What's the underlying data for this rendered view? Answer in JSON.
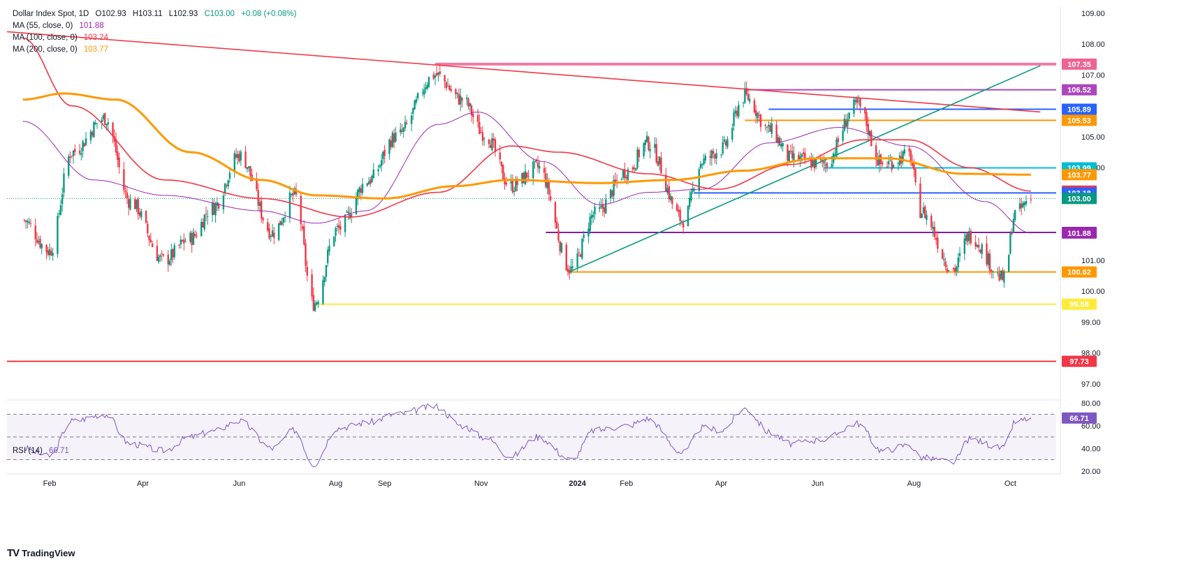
{
  "header": {
    "symbol": "Dollar Index Spot, 1D",
    "open": "O102.93",
    "high": "H103.11",
    "low": "L102.93",
    "close": "C103.00",
    "change": "+0.08 (+0.08%)"
  },
  "moving_averages": [
    {
      "label": "MA (55, close, 0)",
      "value": "101.88",
      "color": "#9c27b0"
    },
    {
      "label": "MA (100, close, 0)",
      "value": "103.24",
      "color": "#f23645"
    },
    {
      "label": "MA (200, close, 0)",
      "value": "103.77",
      "color": "#ff9800"
    }
  ],
  "rsi_legend": {
    "label": "RSI (14)",
    "value": "66.71"
  },
  "footer": {
    "brand": "TradingView"
  },
  "colors": {
    "bull": "#089981",
    "bear": "#f23645",
    "ma55": "#9c27b0",
    "ma100": "#f23645",
    "ma200": "#ff9800",
    "rsi": "#7e57c2",
    "trend_up": "#089981",
    "trend_down": "#f23645"
  },
  "chart_data": [
    {
      "type": "candlestick",
      "title": "Dollar Index Spot, 1D",
      "x_tick_labels": [
        "Feb",
        "Apr",
        "Jun",
        "Aug",
        "Sep",
        "Nov",
        "2024",
        "Feb",
        "Apr",
        "Jun",
        "Aug",
        "Oct"
      ],
      "ylim": [
        96.5,
        109.2
      ],
      "y_ticks": [
        "109.00",
        "108.00",
        "107.00",
        "105.00",
        "104.00",
        "101.00",
        "100.00",
        "99.00",
        "98.00",
        "97.00"
      ],
      "price_keypoints": [
        {
          "date": "2023-01-15",
          "price": 102.3
        },
        {
          "date": "2023-02-01",
          "price": 101.3
        },
        {
          "date": "2023-02-15",
          "price": 104.5
        },
        {
          "date": "2023-03-08",
          "price": 105.6
        },
        {
          "date": "2023-03-24",
          "price": 102.9
        },
        {
          "date": "2023-04-14",
          "price": 101.0
        },
        {
          "date": "2023-05-01",
          "price": 101.7
        },
        {
          "date": "2023-05-15",
          "price": 102.7
        },
        {
          "date": "2023-06-01",
          "price": 104.4
        },
        {
          "date": "2023-06-22",
          "price": 101.9
        },
        {
          "date": "2023-07-06",
          "price": 103.1
        },
        {
          "date": "2023-07-18",
          "price": 99.6
        },
        {
          "date": "2023-08-02",
          "price": 102.0
        },
        {
          "date": "2023-08-22",
          "price": 103.6
        },
        {
          "date": "2023-09-08",
          "price": 105.0
        },
        {
          "date": "2023-10-03",
          "price": 107.0
        },
        {
          "date": "2023-10-20",
          "price": 106.2
        },
        {
          "date": "2023-11-03",
          "price": 105.1
        },
        {
          "date": "2023-11-20",
          "price": 103.4
        },
        {
          "date": "2023-12-07",
          "price": 104.0
        },
        {
          "date": "2023-12-28",
          "price": 100.7
        },
        {
          "date": "2024-01-12",
          "price": 102.5
        },
        {
          "date": "2024-02-02",
          "price": 103.9
        },
        {
          "date": "2024-02-14",
          "price": 104.8
        },
        {
          "date": "2024-03-08",
          "price": 102.3
        },
        {
          "date": "2024-03-20",
          "price": 104.2
        },
        {
          "date": "2024-04-01",
          "price": 104.6
        },
        {
          "date": "2024-04-16",
          "price": 106.3
        },
        {
          "date": "2024-05-02",
          "price": 105.2
        },
        {
          "date": "2024-05-15",
          "price": 104.3
        },
        {
          "date": "2024-06-05",
          "price": 104.1
        },
        {
          "date": "2024-06-26",
          "price": 106.0
        },
        {
          "date": "2024-07-12",
          "price": 104.1
        },
        {
          "date": "2024-07-29",
          "price": 104.4
        },
        {
          "date": "2024-08-05",
          "price": 102.6
        },
        {
          "date": "2024-08-26",
          "price": 100.7
        },
        {
          "date": "2024-09-05",
          "price": 101.8
        },
        {
          "date": "2024-09-27",
          "price": 100.4
        },
        {
          "date": "2024-10-04",
          "price": 102.5
        },
        {
          "date": "2024-10-14",
          "price": 103.0
        }
      ],
      "moving_averages": [
        {
          "name": "MA (55, close, 0)",
          "points": [
            {
              "date": "2023-01-15",
              "v": 105.5
            },
            {
              "date": "2023-03-01",
              "v": 103.6
            },
            {
              "date": "2023-04-15",
              "v": 103.1
            },
            {
              "date": "2023-06-15",
              "v": 102.6
            },
            {
              "date": "2023-07-20",
              "v": 102.2
            },
            {
              "date": "2023-08-20",
              "v": 102.6
            },
            {
              "date": "2023-10-05",
              "v": 105.4
            },
            {
              "date": "2023-10-30",
              "v": 105.8
            },
            {
              "date": "2023-12-10",
              "v": 104.2
            },
            {
              "date": "2024-01-15",
              "v": 102.8
            },
            {
              "date": "2024-02-15",
              "v": 103.2
            },
            {
              "date": "2024-03-20",
              "v": 103.3
            },
            {
              "date": "2024-05-01",
              "v": 104.8
            },
            {
              "date": "2024-06-15",
              "v": 105.3
            },
            {
              "date": "2024-07-29",
              "v": 104.7
            },
            {
              "date": "2024-09-15",
              "v": 102.9
            },
            {
              "date": "2024-10-14",
              "v": 101.88
            }
          ]
        },
        {
          "name": "MA (100, close, 0)",
          "points": [
            {
              "date": "2023-01-15",
              "v": 108.2
            },
            {
              "date": "2023-02-15",
              "v": 106.0
            },
            {
              "date": "2023-04-15",
              "v": 103.6
            },
            {
              "date": "2023-06-15",
              "v": 103.0
            },
            {
              "date": "2023-08-10",
              "v": 102.4
            },
            {
              "date": "2023-10-05",
              "v": 103.2
            },
            {
              "date": "2023-11-20",
              "v": 104.7
            },
            {
              "date": "2023-12-20",
              "v": 104.5
            },
            {
              "date": "2024-02-15",
              "v": 103.8
            },
            {
              "date": "2024-03-30",
              "v": 103.3
            },
            {
              "date": "2024-05-15",
              "v": 104.1
            },
            {
              "date": "2024-06-30",
              "v": 104.9
            },
            {
              "date": "2024-07-29",
              "v": 104.9
            },
            {
              "date": "2024-09-05",
              "v": 104.0
            },
            {
              "date": "2024-10-14",
              "v": 103.24
            }
          ]
        },
        {
          "name": "MA (200, close, 0)",
          "points": [
            {
              "date": "2023-01-15",
              "v": 106.2
            },
            {
              "date": "2023-02-10",
              "v": 106.4
            },
            {
              "date": "2023-03-15",
              "v": 106.2
            },
            {
              "date": "2023-05-01",
              "v": 104.5
            },
            {
              "date": "2023-06-15",
              "v": 103.6
            },
            {
              "date": "2023-07-20",
              "v": 103.1
            },
            {
              "date": "2023-09-01",
              "v": 103.0
            },
            {
              "date": "2023-10-15",
              "v": 103.4
            },
            {
              "date": "2023-11-20",
              "v": 103.6
            },
            {
              "date": "2024-01-15",
              "v": 103.5
            },
            {
              "date": "2024-03-01",
              "v": 103.6
            },
            {
              "date": "2024-04-15",
              "v": 103.9
            },
            {
              "date": "2024-06-01",
              "v": 104.3
            },
            {
              "date": "2024-07-15",
              "v": 104.3
            },
            {
              "date": "2024-09-01",
              "v": 103.8
            },
            {
              "date": "2024-10-14",
              "v": 103.77
            }
          ]
        }
      ],
      "trendlines": [
        {
          "from": {
            "date": "2023-01-05",
            "price": 108.4
          },
          "to": {
            "date": "2024-10-20",
            "price": 105.8
          }
        },
        {
          "from": {
            "date": "2023-12-28",
            "price": 100.65
          },
          "to": {
            "date": "2024-10-20",
            "price": 107.3
          }
        }
      ],
      "horizontal_levels": [
        {
          "price": 107.35,
          "label": "107.35",
          "color": "#f06292",
          "from_date": "2023-10-03"
        },
        {
          "price": 106.52,
          "label": "106.52",
          "color": "#ab47bc",
          "from_date": "2024-04-16"
        },
        {
          "price": 105.89,
          "label": "105.89",
          "color": "#2962ff",
          "from_date": "2024-05-01"
        },
        {
          "price": 105.53,
          "label": "105.53",
          "color": "#ff9800",
          "from_date": "2024-04-16"
        },
        {
          "price": 103.99,
          "label": "103.99",
          "color": "#00bcd4",
          "from_date": "2024-06-05"
        },
        {
          "price": 103.77,
          "label": "103.77",
          "color": "#ff9800",
          "from_date": null
        },
        {
          "price": 103.24,
          "label": "103.24",
          "color": "#f23645",
          "from_date": null
        },
        {
          "price": 103.18,
          "label": "103.18",
          "color": "#2962ff",
          "from_date": "2024-03-15"
        },
        {
          "price": 103.0,
          "label": "103.00",
          "color": "#089981",
          "from_date": null
        },
        {
          "price": 101.9,
          "label": "101.90",
          "color": "#7b1fa2",
          "from_date": "2023-12-12"
        },
        {
          "price": 101.88,
          "label": "101.88",
          "color": "#9c27b0",
          "from_date": null
        },
        {
          "price": 100.62,
          "label": "100.62",
          "color": "#ff9800",
          "from_date": "2023-12-28"
        },
        {
          "price": 99.58,
          "label": "99.58",
          "color": "#ffeb3b",
          "from_date": "2023-07-18"
        },
        {
          "price": 97.73,
          "label": "97.73",
          "color": "#f23645",
          "from_date": "2023-01-05"
        }
      ]
    },
    {
      "type": "line",
      "title": "RSI (14)",
      "ylim": [
        18,
        82
      ],
      "y_ticks": [
        "80.00",
        "60.00",
        "40.00",
        "20.00"
      ],
      "bands": [
        70,
        50,
        30
      ],
      "last_value": "66.71",
      "points": [
        {
          "date": "2023-01-15",
          "v": 40
        },
        {
          "date": "2023-02-01",
          "v": 33
        },
        {
          "date": "2023-02-15",
          "v": 64
        },
        {
          "date": "2023-03-08",
          "v": 70
        },
        {
          "date": "2023-03-24",
          "v": 44
        },
        {
          "date": "2023-04-14",
          "v": 38
        },
        {
          "date": "2023-05-01",
          "v": 50
        },
        {
          "date": "2023-05-15",
          "v": 55
        },
        {
          "date": "2023-06-01",
          "v": 64
        },
        {
          "date": "2023-06-22",
          "v": 40
        },
        {
          "date": "2023-07-06",
          "v": 56
        },
        {
          "date": "2023-07-18",
          "v": 26
        },
        {
          "date": "2023-08-02",
          "v": 58
        },
        {
          "date": "2023-08-22",
          "v": 63
        },
        {
          "date": "2023-09-08",
          "v": 70
        },
        {
          "date": "2023-10-03",
          "v": 77
        },
        {
          "date": "2023-10-20",
          "v": 60
        },
        {
          "date": "2023-11-03",
          "v": 50
        },
        {
          "date": "2023-11-20",
          "v": 33
        },
        {
          "date": "2023-12-07",
          "v": 50
        },
        {
          "date": "2023-12-28",
          "v": 30
        },
        {
          "date": "2024-01-12",
          "v": 56
        },
        {
          "date": "2024-02-02",
          "v": 60
        },
        {
          "date": "2024-02-14",
          "v": 66
        },
        {
          "date": "2024-03-08",
          "v": 36
        },
        {
          "date": "2024-03-20",
          "v": 58
        },
        {
          "date": "2024-04-01",
          "v": 56
        },
        {
          "date": "2024-04-16",
          "v": 75
        },
        {
          "date": "2024-05-02",
          "v": 54
        },
        {
          "date": "2024-05-15",
          "v": 44
        },
        {
          "date": "2024-06-05",
          "v": 48
        },
        {
          "date": "2024-06-26",
          "v": 62
        },
        {
          "date": "2024-07-12",
          "v": 38
        },
        {
          "date": "2024-07-29",
          "v": 43
        },
        {
          "date": "2024-08-05",
          "v": 32
        },
        {
          "date": "2024-08-26",
          "v": 28
        },
        {
          "date": "2024-09-05",
          "v": 48
        },
        {
          "date": "2024-09-27",
          "v": 40
        },
        {
          "date": "2024-10-04",
          "v": 63
        },
        {
          "date": "2024-10-14",
          "v": 66.71
        }
      ]
    }
  ]
}
